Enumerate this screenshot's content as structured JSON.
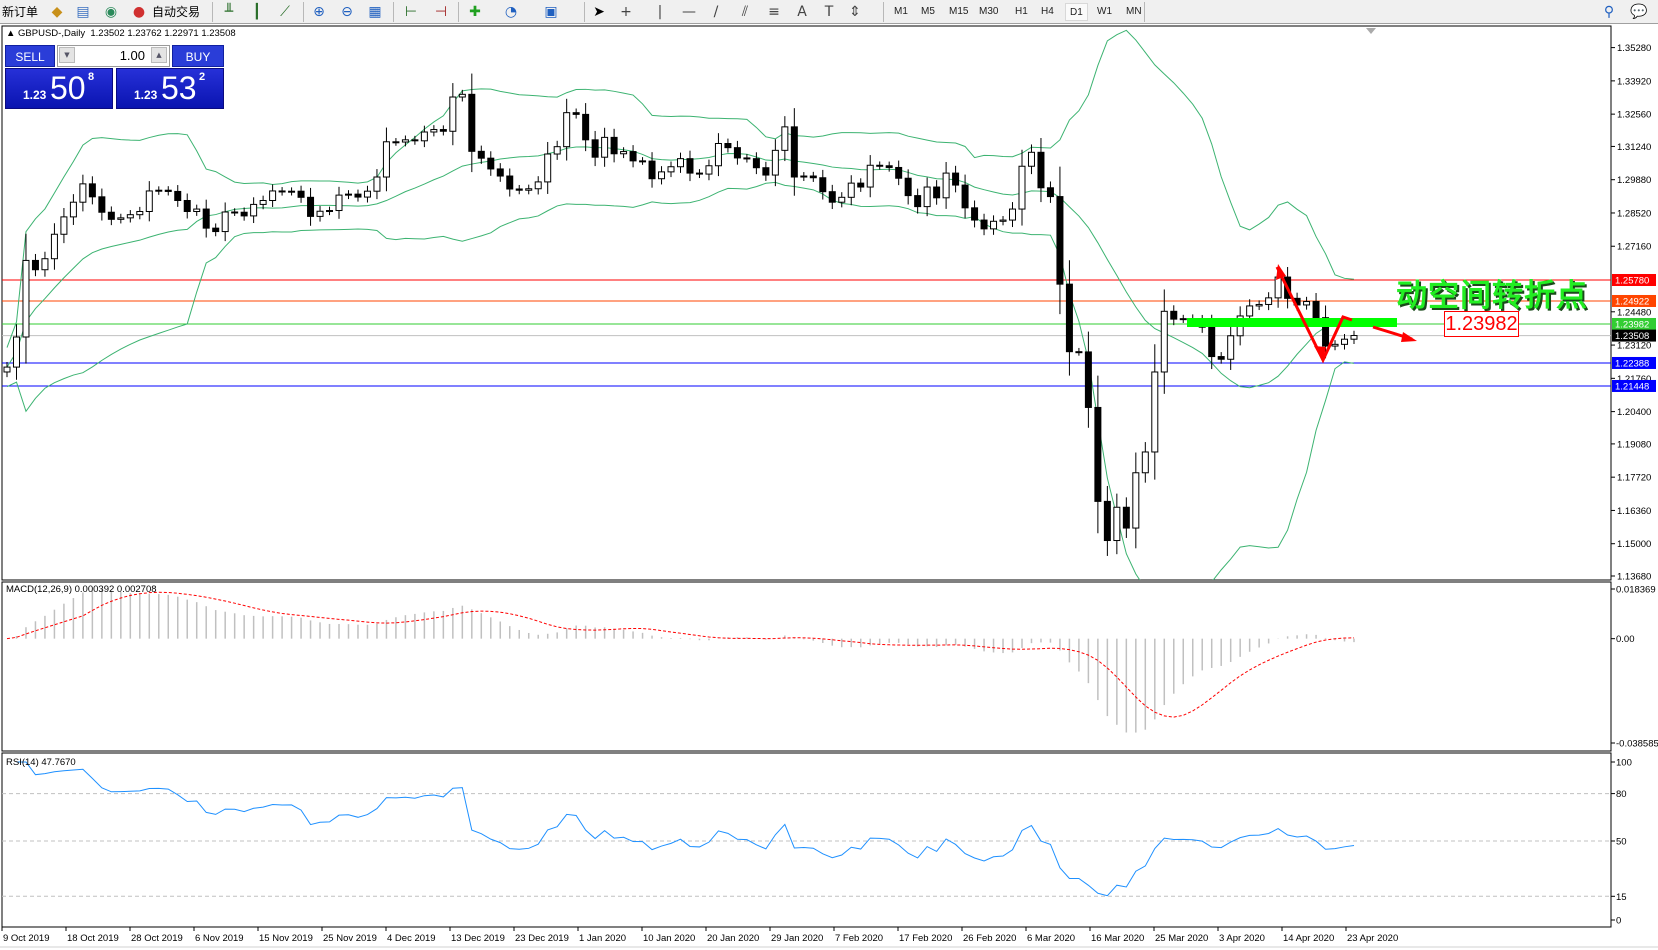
{
  "toolbar": {
    "new_order": "新订单",
    "auto_trading": "自动交易",
    "icons": [
      "new-order-icon",
      "history-icon",
      "signals-icon",
      "auto-trading-icon",
      "bar-chart-icon",
      "candlestick-icon",
      "line-chart-icon",
      "zoom-in-icon",
      "zoom-out-icon",
      "tile-windows-icon",
      "chart-shift-icon",
      "autoscroll-icon",
      "indicators-icon",
      "periods-icon",
      "templates-icon",
      "cursor-icon",
      "crosshair-icon",
      "vertical-line-icon",
      "horizontal-line-icon",
      "trendline-icon",
      "equidistant-channel-icon",
      "fibonacci-icon",
      "text-icon",
      "text-label-icon",
      "arrows-icon",
      "search-icon",
      "chat-icon"
    ],
    "text_tool": "A",
    "timeframes": [
      "M1",
      "M5",
      "M15",
      "M30",
      "H1",
      "H4",
      "D1",
      "W1",
      "MN"
    ],
    "active_timeframe": "D1"
  },
  "chart": {
    "symbol": "GBPUSD-,Daily",
    "ohlc": "1.23502 1.23762 1.22971 1.23508"
  },
  "trade_panel": {
    "sell_label": "SELL",
    "buy_label": "BUY",
    "lot": "1.00",
    "sell_price": {
      "prefix": "1.23",
      "big": "50",
      "small": "8"
    },
    "buy_price": {
      "prefix": "1.23",
      "big": "53",
      "small": "2"
    }
  },
  "price_axis": {
    "ticks": [
      "1.35280",
      "1.33920",
      "1.32560",
      "1.31240",
      "1.29880",
      "1.28520",
      "1.27160",
      "1.24480",
      "1.23120",
      "1.21760",
      "1.20400",
      "1.19080",
      "1.17720",
      "1.16360",
      "1.15000",
      "1.13680"
    ]
  },
  "levels": [
    {
      "price": "1.25780",
      "line_color": "#ff0000",
      "label_bg": "#ff0000"
    },
    {
      "price": "1.24922",
      "line_color": "#ff4500",
      "label_bg": "#ff4500"
    },
    {
      "price": "1.23982",
      "line_color": "#32cd32",
      "label_bg": "#32cd32"
    },
    {
      "price": "1.23508",
      "line_color": "#c0c0c0",
      "label_bg": "#000000"
    },
    {
      "price": "1.22388",
      "line_color": "#0000ff",
      "label_bg": "#0000ff"
    },
    {
      "price": "1.21448",
      "line_color": "#0000ff",
      "label_bg": "#0000ff"
    }
  ],
  "annotation": {
    "text": "动空间转折点",
    "price_box": "1.23982",
    "text_color": "#22ee22",
    "arrow_color": "#ff0000",
    "bar_color": "#00ff00"
  },
  "macd": {
    "label": "MACD(12,26,9) 0.000392 0.002708",
    "ticks": [
      "0.018369",
      "0.00",
      "-0.038585"
    ],
    "histogram_color": "#c0c0c0",
    "signal_color": "#ff0000"
  },
  "rsi": {
    "label": "RSI(14) 47.7670",
    "ticks": [
      "100",
      "80",
      "50",
      "15",
      "0"
    ],
    "line_color": "#1e90ff"
  },
  "chart_data": {
    "type": "candlestick",
    "symbol": "GBPUSD",
    "timeframe": "Daily",
    "x_tick_labels": [
      "9 Oct 2019",
      "18 Oct 2019",
      "28 Oct 2019",
      "6 Nov 2019",
      "15 Nov 2019",
      "25 Nov 2019",
      "4 Dec 2019",
      "13 Dec 2019",
      "23 Dec 2019",
      "1 Jan 2020",
      "10 Jan 2020",
      "20 Jan 2020",
      "29 Jan 2020",
      "7 Feb 2020",
      "17 Feb 2020",
      "26 Feb 2020",
      "6 Mar 2020",
      "16 Mar 2020",
      "25 Mar 2020",
      "3 Apr 2020",
      "14 Apr 2020",
      "23 Apr 2020"
    ],
    "ylim": [
      1.1368,
      1.3528
    ],
    "close": [
      1.2222,
      1.2345,
      1.2658,
      1.262,
      1.2665,
      1.2765,
      1.2836,
      1.2896,
      1.2971,
      1.2918,
      1.2855,
      1.2826,
      1.2832,
      1.2845,
      1.2858,
      1.2942,
      1.2945,
      1.294,
      1.2903,
      1.2858,
      1.2868,
      1.279,
      1.2776,
      1.2856,
      1.2855,
      1.284,
      1.2887,
      1.2903,
      1.2942,
      1.2939,
      1.2941,
      1.2916,
      1.2838,
      1.2859,
      1.2862,
      1.2925,
      1.2929,
      1.2917,
      1.2941,
      1.2999,
      1.3143,
      1.3142,
      1.3151,
      1.3147,
      1.3183,
      1.3193,
      1.3186,
      1.3326,
      1.3337,
      1.3104,
      1.3076,
      1.3032,
      1.3003,
      1.295,
      1.2945,
      1.2951,
      1.2979,
      1.3093,
      1.3123,
      1.3262,
      1.3255,
      1.3151,
      1.308,
      1.3161,
      1.3094,
      1.3103,
      1.3065,
      1.3064,
      1.2992,
      1.302,
      1.3041,
      1.3074,
      1.3015,
      1.3011,
      1.3045,
      1.3136,
      1.3119,
      1.3077,
      1.3074,
      1.3037,
      1.3007,
      1.3108,
      1.3204,
      1.2999,
      1.3003,
      1.2996,
      1.2939,
      1.2896,
      1.2916,
      1.2974,
      1.2958,
      1.3047,
      1.3045,
      1.3038,
      1.2994,
      1.2923,
      1.2878,
      1.2958,
      1.2914,
      1.3015,
      1.2966,
      1.2873,
      1.2823,
      1.2787,
      1.2818,
      1.2823,
      1.2868,
      1.3043,
      1.31,
      1.2955,
      1.2919,
      1.2561,
      1.2285,
      1.2284,
      1.2057,
      1.1673,
      1.1513,
      1.1649,
      1.1564,
      1.179,
      1.1875,
      1.2202,
      1.245,
      1.2418,
      1.242,
      1.2412,
      1.2385,
      1.2265,
      1.2254,
      1.235,
      1.2431,
      1.2472,
      1.2478,
      1.2505,
      1.259,
      1.2503,
      1.2476,
      1.249,
      1.2424,
      1.2308,
      1.2315,
      1.2336,
      1.2351
    ],
    "bollinger_color": "#3cb371"
  }
}
